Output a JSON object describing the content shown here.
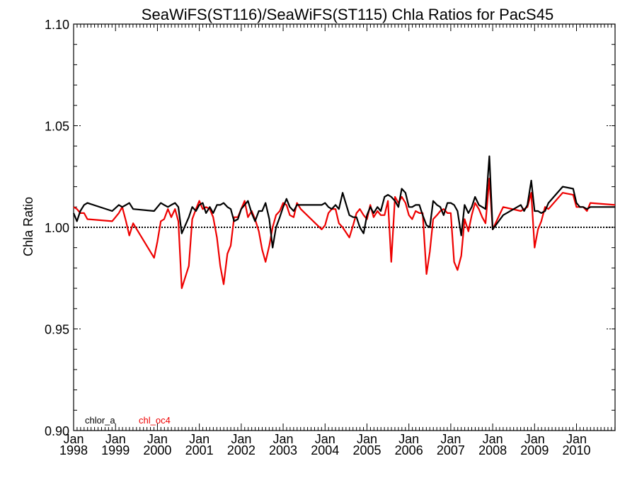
{
  "chart_data": {
    "type": "line",
    "title": "SeaWiFS(ST116)/SeaWiFS(ST115)  Chla Ratios for PacS45",
    "xlabel": "",
    "ylabel": "Chla Ratio",
    "xlim": [
      1998.0,
      2010.92
    ],
    "ylim": [
      0.9,
      1.1
    ],
    "yticks": [
      "0.90",
      "0.95",
      "1.00",
      "1.05",
      "1.10"
    ],
    "xticks": [
      {
        "month": "Jan",
        "year": "1998"
      },
      {
        "month": "Jan",
        "year": "1999"
      },
      {
        "month": "Jan",
        "year": "2000"
      },
      {
        "month": "Jan",
        "year": "2001"
      },
      {
        "month": "Jan",
        "year": "2002"
      },
      {
        "month": "Jan",
        "year": "2003"
      },
      {
        "month": "Jan",
        "year": "2004"
      },
      {
        "month": "Jan",
        "year": "2005"
      },
      {
        "month": "Jan",
        "year": "2006"
      },
      {
        "month": "Jan",
        "year": "2007"
      },
      {
        "month": "Jan",
        "year": "2008"
      },
      {
        "month": "Jan",
        "year": "2009"
      },
      {
        "month": "Jan",
        "year": "2010"
      }
    ],
    "reference_line": 1.0,
    "legend_placement": "bottom-left",
    "series": [
      {
        "name": "chlor_a",
        "color": "#000000",
        "x": [
          1998.0,
          1998.08,
          1998.16,
          1998.25,
          1998.33,
          1998.92,
          1999.08,
          1999.16,
          1999.25,
          1999.33,
          1999.42,
          1999.92,
          2000.0,
          2000.08,
          2000.16,
          2000.25,
          2000.33,
          2000.42,
          2000.5,
          2000.58,
          2000.75,
          2000.83,
          2000.92,
          2001.0,
          2001.08,
          2001.16,
          2001.25,
          2001.33,
          2001.42,
          2001.5,
          2001.58,
          2001.67,
          2001.75,
          2001.83,
          2001.92,
          2002.0,
          2002.08,
          2002.16,
          2002.25,
          2002.33,
          2002.42,
          2002.5,
          2002.58,
          2002.67,
          2002.75,
          2002.83,
          2002.92,
          2003.0,
          2003.08,
          2003.16,
          2003.25,
          2003.33,
          2003.42,
          2003.92,
          2004.0,
          2004.08,
          2004.16,
          2004.25,
          2004.33,
          2004.42,
          2004.58,
          2004.67,
          2004.75,
          2004.83,
          2004.92,
          2005.0,
          2005.08,
          2005.16,
          2005.25,
          2005.33,
          2005.42,
          2005.5,
          2005.58,
          2005.67,
          2005.75,
          2005.83,
          2005.92,
          2006.0,
          2006.08,
          2006.16,
          2006.25,
          2006.33,
          2006.42,
          2006.5,
          2006.58,
          2006.67,
          2006.75,
          2006.83,
          2006.92,
          2007.0,
          2007.08,
          2007.16,
          2007.25,
          2007.33,
          2007.42,
          2007.5,
          2007.58,
          2007.67,
          2007.75,
          2007.83,
          2007.92,
          2008.0,
          2008.25,
          2008.67,
          2008.75,
          2008.83,
          2008.92,
          2009.0,
          2009.08,
          2009.16,
          2009.25,
          2009.33,
          2009.67,
          2009.92,
          2010.0,
          2010.08,
          2010.16,
          2010.25,
          2010.33,
          2010.92
        ],
        "values": [
          1.007,
          1.003,
          1.008,
          1.011,
          1.012,
          1.008,
          1.011,
          1.01,
          1.011,
          1.012,
          1.009,
          1.008,
          1.01,
          1.012,
          1.011,
          1.01,
          1.011,
          1.012,
          1.01,
          0.997,
          1.005,
          1.01,
          1.008,
          1.011,
          1.012,
          1.007,
          1.01,
          1.007,
          1.011,
          1.011,
          1.012,
          1.01,
          1.009,
          1.003,
          1.004,
          1.009,
          1.011,
          1.013,
          1.007,
          1.003,
          1.008,
          1.008,
          1.012,
          1.004,
          0.99,
          1.0,
          1.005,
          1.01,
          1.014,
          1.01,
          1.008,
          1.011,
          1.011,
          1.011,
          1.012,
          1.01,
          1.009,
          1.011,
          1.009,
          1.017,
          1.006,
          1.005,
          1.005,
          1.0,
          0.997,
          1.006,
          1.01,
          1.007,
          1.01,
          1.008,
          1.015,
          1.016,
          1.015,
          1.013,
          1.01,
          1.019,
          1.017,
          1.01,
          1.01,
          1.011,
          1.011,
          1.006,
          1.001,
          1.0,
          1.013,
          1.011,
          1.01,
          1.006,
          1.012,
          1.012,
          1.011,
          1.008,
          0.996,
          1.011,
          1.007,
          1.01,
          1.015,
          1.011,
          1.01,
          1.009,
          1.035,
          0.999,
          1.006,
          1.011,
          1.008,
          1.011,
          1.023,
          1.008,
          1.008,
          1.007,
          1.008,
          1.012,
          1.02,
          1.019,
          1.012,
          1.01,
          1.01,
          1.009,
          1.01,
          1.01
        ]
      },
      {
        "name": "chl_oc4",
        "color": "#ee0000",
        "x": [
          1998.0,
          1998.08,
          1998.16,
          1998.25,
          1998.33,
          1998.92,
          1999.08,
          1999.16,
          1999.25,
          1999.33,
          1999.42,
          1999.92,
          2000.0,
          2000.08,
          2000.16,
          2000.25,
          2000.33,
          2000.42,
          2000.5,
          2000.58,
          2000.75,
          2000.83,
          2000.92,
          2001.0,
          2001.08,
          2001.16,
          2001.25,
          2001.33,
          2001.42,
          2001.5,
          2001.58,
          2001.67,
          2001.75,
          2001.83,
          2001.92,
          2002.0,
          2002.08,
          2002.16,
          2002.25,
          2002.33,
          2002.42,
          2002.5,
          2002.58,
          2002.67,
          2002.75,
          2002.83,
          2002.92,
          2003.0,
          2003.08,
          2003.16,
          2003.25,
          2003.33,
          2003.42,
          2003.92,
          2004.0,
          2004.08,
          2004.16,
          2004.25,
          2004.33,
          2004.42,
          2004.58,
          2004.67,
          2004.75,
          2004.83,
          2004.92,
          2005.0,
          2005.08,
          2005.16,
          2005.25,
          2005.33,
          2005.42,
          2005.5,
          2005.58,
          2005.67,
          2005.75,
          2005.83,
          2005.92,
          2006.0,
          2006.08,
          2006.16,
          2006.25,
          2006.33,
          2006.42,
          2006.5,
          2006.58,
          2006.67,
          2006.75,
          2006.83,
          2006.92,
          2007.0,
          2007.08,
          2007.16,
          2007.25,
          2007.33,
          2007.42,
          2007.5,
          2007.58,
          2007.67,
          2007.75,
          2007.83,
          2007.92,
          2008.0,
          2008.25,
          2008.67,
          2008.75,
          2008.83,
          2008.92,
          2009.0,
          2009.08,
          2009.16,
          2009.25,
          2009.33,
          2009.67,
          2009.92,
          2010.0,
          2010.08,
          2010.16,
          2010.25,
          2010.33,
          2010.92
        ],
        "values": [
          1.01,
          1.009,
          1.007,
          1.007,
          1.004,
          1.003,
          1.007,
          1.01,
          1.003,
          0.996,
          1.002,
          0.985,
          0.993,
          1.003,
          1.004,
          1.009,
          1.005,
          1.009,
          1.003,
          0.97,
          0.981,
          1.004,
          1.009,
          1.013,
          1.009,
          1.01,
          1.009,
          1.005,
          0.995,
          0.981,
          0.972,
          0.987,
          0.991,
          1.005,
          1.005,
          1.009,
          1.013,
          1.005,
          1.008,
          1.004,
          0.998,
          0.989,
          0.983,
          0.991,
          1.0,
          1.006,
          1.008,
          1.012,
          1.011,
          1.006,
          1.005,
          1.012,
          1.009,
          0.999,
          1.001,
          1.007,
          1.009,
          1.009,
          1.002,
          1.0,
          0.995,
          1.001,
          1.007,
          1.009,
          1.006,
          1.004,
          1.011,
          1.005,
          1.008,
          1.006,
          1.006,
          1.013,
          0.983,
          1.015,
          1.012,
          1.015,
          1.012,
          1.006,
          1.004,
          1.008,
          1.007,
          1.007,
          0.977,
          0.988,
          1.004,
          1.006,
          1.008,
          1.009,
          1.007,
          1.007,
          0.983,
          0.979,
          0.986,
          1.004,
          0.998,
          1.006,
          1.012,
          1.009,
          1.005,
          1.002,
          1.024,
          0.999,
          1.01,
          1.008,
          1.009,
          1.01,
          1.017,
          0.99,
          0.999,
          1.003,
          1.01,
          1.009,
          1.017,
          1.016,
          1.01,
          1.01,
          1.01,
          1.008,
          1.012,
          1.011
        ]
      }
    ]
  }
}
